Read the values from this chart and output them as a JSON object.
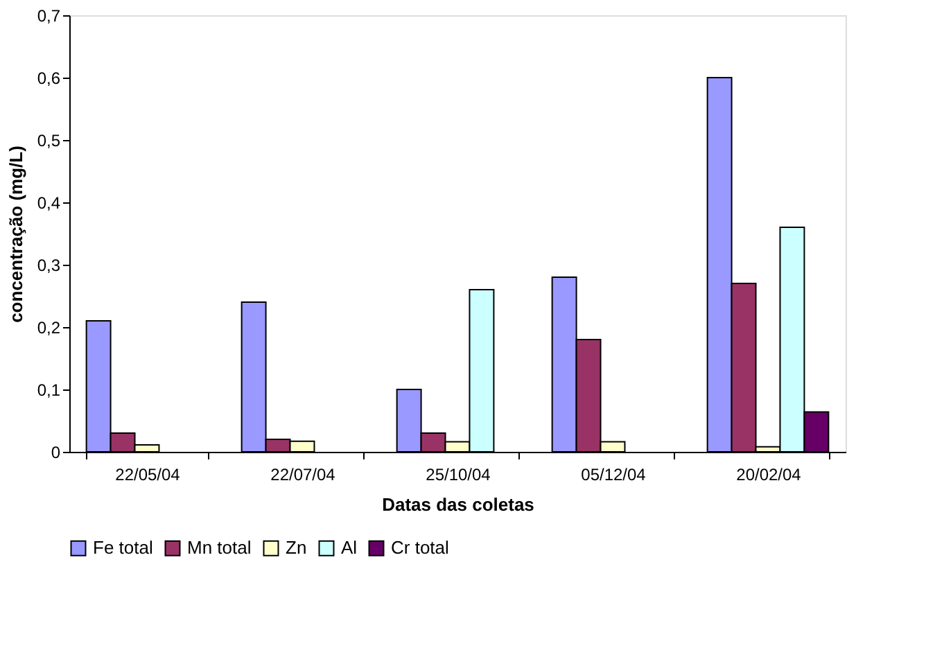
{
  "chart_data": {
    "type": "bar",
    "xlabel": "Datas das coletas",
    "ylabel": "concentração (mg/L)",
    "categories": [
      "22/05/04",
      "22/07/04",
      "25/10/04",
      "05/12/04",
      "20/02/04"
    ],
    "series": [
      {
        "name": "Fe total",
        "color": "#9999ff",
        "values": [
          0.21,
          0.24,
          0.1,
          0.28,
          0.6
        ]
      },
      {
        "name": "Mn total",
        "color": "#993366",
        "values": [
          0.03,
          0.02,
          0.03,
          0.18,
          0.27
        ]
      },
      {
        "name": "Zn",
        "color": "#ffffcc",
        "values": [
          0.011,
          0.017,
          0.016,
          0.016,
          0.008
        ]
      },
      {
        "name": "Al",
        "color": "#ccffff",
        "values": [
          null,
          null,
          0.26,
          null,
          0.36
        ]
      },
      {
        "name": "Cr total",
        "color": "#660066",
        "values": [
          null,
          null,
          null,
          null,
          0.064
        ]
      }
    ],
    "ylim": [
      0,
      0.7
    ],
    "yticks": [
      0,
      {
        "value": 0.1,
        "label": "0,1"
      },
      {
        "value": 0.2,
        "label": "0,2"
      },
      {
        "value": 0.3,
        "label": "0,3"
      },
      {
        "value": 0.4,
        "label": "0,4"
      },
      {
        "value": 0.5,
        "label": "0,5"
      },
      {
        "value": 0.6,
        "label": "0,6"
      },
      {
        "value": 0.7,
        "label": "0,7"
      }
    ],
    "grid": false,
    "legend": "bottom"
  }
}
